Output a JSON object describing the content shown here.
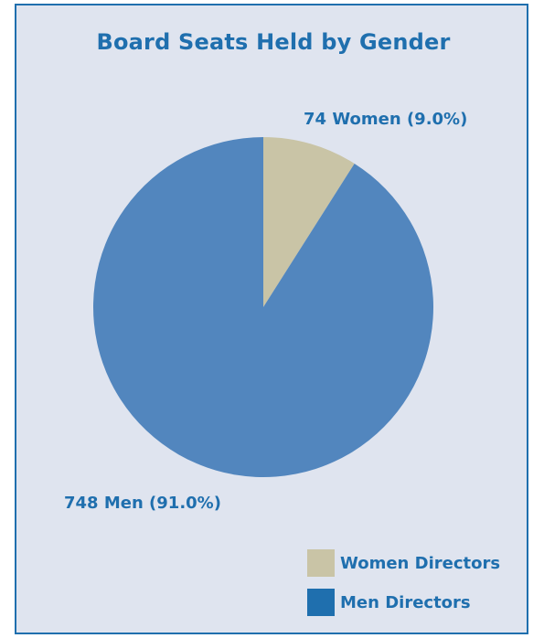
{
  "chart_data": {
    "type": "pie",
    "title": "Board Seats Held by Gender",
    "slices": [
      {
        "name": "Women Directors",
        "value": 74,
        "percent": 9.0,
        "label": "74 Women (9.0%)",
        "color": "#c9c4a6"
      },
      {
        "name": "Men Directors",
        "value": 748,
        "percent": 91.0,
        "label": "748 Men (91.0%)",
        "color": "#5286be"
      }
    ],
    "legend": {
      "placement": "bottom-right",
      "items": [
        {
          "label": "Women Directors",
          "color": "#c9c4a6"
        },
        {
          "label": "Men Directors",
          "color": "#1f6fae"
        }
      ]
    }
  },
  "colors": {
    "background": "#dfe4ef",
    "border": "#1f6fae",
    "text": "#1f6fae"
  }
}
